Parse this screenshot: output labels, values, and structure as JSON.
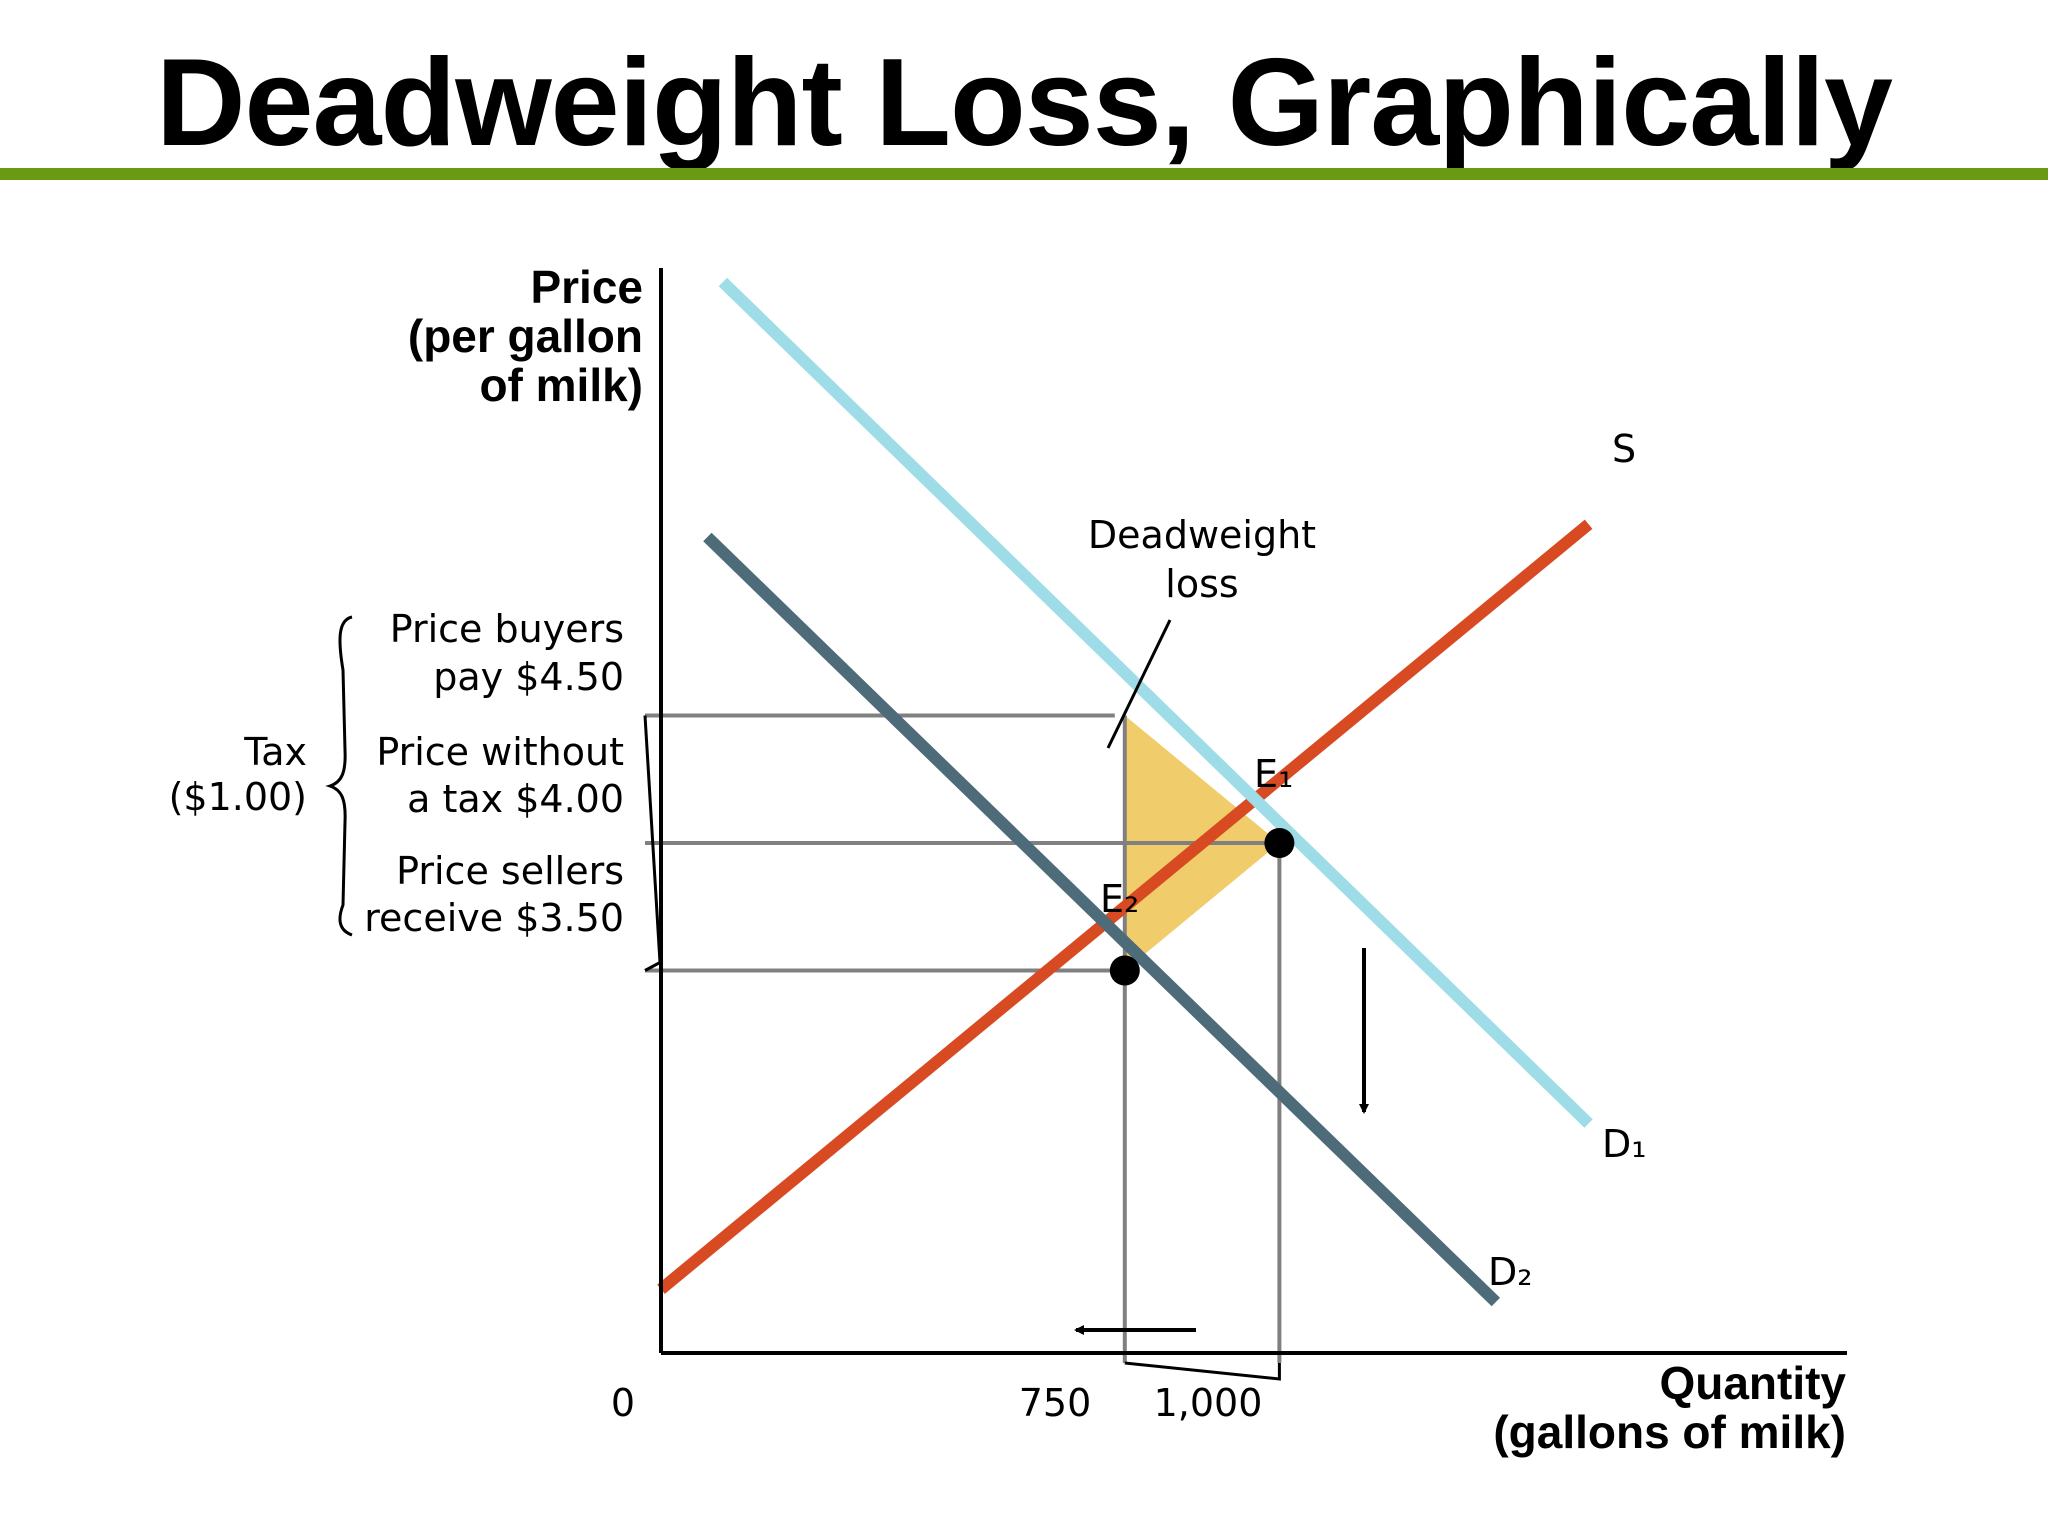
{
  "title": "Deadweight Loss, Graphically",
  "colors": {
    "title_rule": "#6a9a12",
    "supply": "#d84a22",
    "demand_original": "#9edde8",
    "demand_taxed": "#4e6b7a",
    "deadweight_loss_fill": "#f0cd6a",
    "guide_lines": "#808080",
    "axes": "#000000"
  },
  "chart_data": {
    "type": "line",
    "xlabel": [
      "Quantity",
      "(gallons of milk)"
    ],
    "ylabel": [
      "Price",
      "(per gallon",
      "of milk)"
    ],
    "origin_label": "0",
    "x_ticks": [
      {
        "value": 750,
        "label": "750"
      },
      {
        "value": 1000,
        "label": "1,000"
      }
    ],
    "y_ticks": [
      {
        "value": 4.5,
        "label": [
          "Price buyers",
          "pay $4.50"
        ]
      },
      {
        "value": 4.0,
        "label": [
          "Price without",
          "a tax $4.00"
        ]
      },
      {
        "value": 3.5,
        "label": [
          "Price sellers",
          "receive $3.50"
        ]
      }
    ],
    "tax_label": [
      "Tax",
      "($1.00)"
    ],
    "series": [
      {
        "name": "S",
        "role": "supply",
        "x": [
          0,
          1500
        ],
        "y": [
          2.25,
          5.25
        ]
      },
      {
        "name": "D₁",
        "role": "demand-original",
        "x": [
          100,
          1500
        ],
        "y": [
          6.2,
          2.9
        ]
      },
      {
        "name": "D₂",
        "role": "demand-with-tax",
        "x": [
          75,
          1350
        ],
        "y": [
          5.2,
          2.2
        ]
      }
    ],
    "points": [
      {
        "label": "E₁",
        "x": 1000,
        "y": 4.0
      },
      {
        "label": "E₂",
        "x": 750,
        "y": 3.5
      }
    ],
    "shaded_region": {
      "label": [
        "Deadweight",
        "loss"
      ],
      "vertices": [
        [
          750,
          4.5
        ],
        [
          1000,
          4.0
        ],
        [
          750,
          3.5
        ]
      ]
    },
    "annotations": [
      {
        "text": "↓",
        "meaning": "demand shifts down from D₁ to D₂"
      },
      {
        "text": "←",
        "meaning": "quantity falls from 1,000 to 750"
      }
    ]
  }
}
